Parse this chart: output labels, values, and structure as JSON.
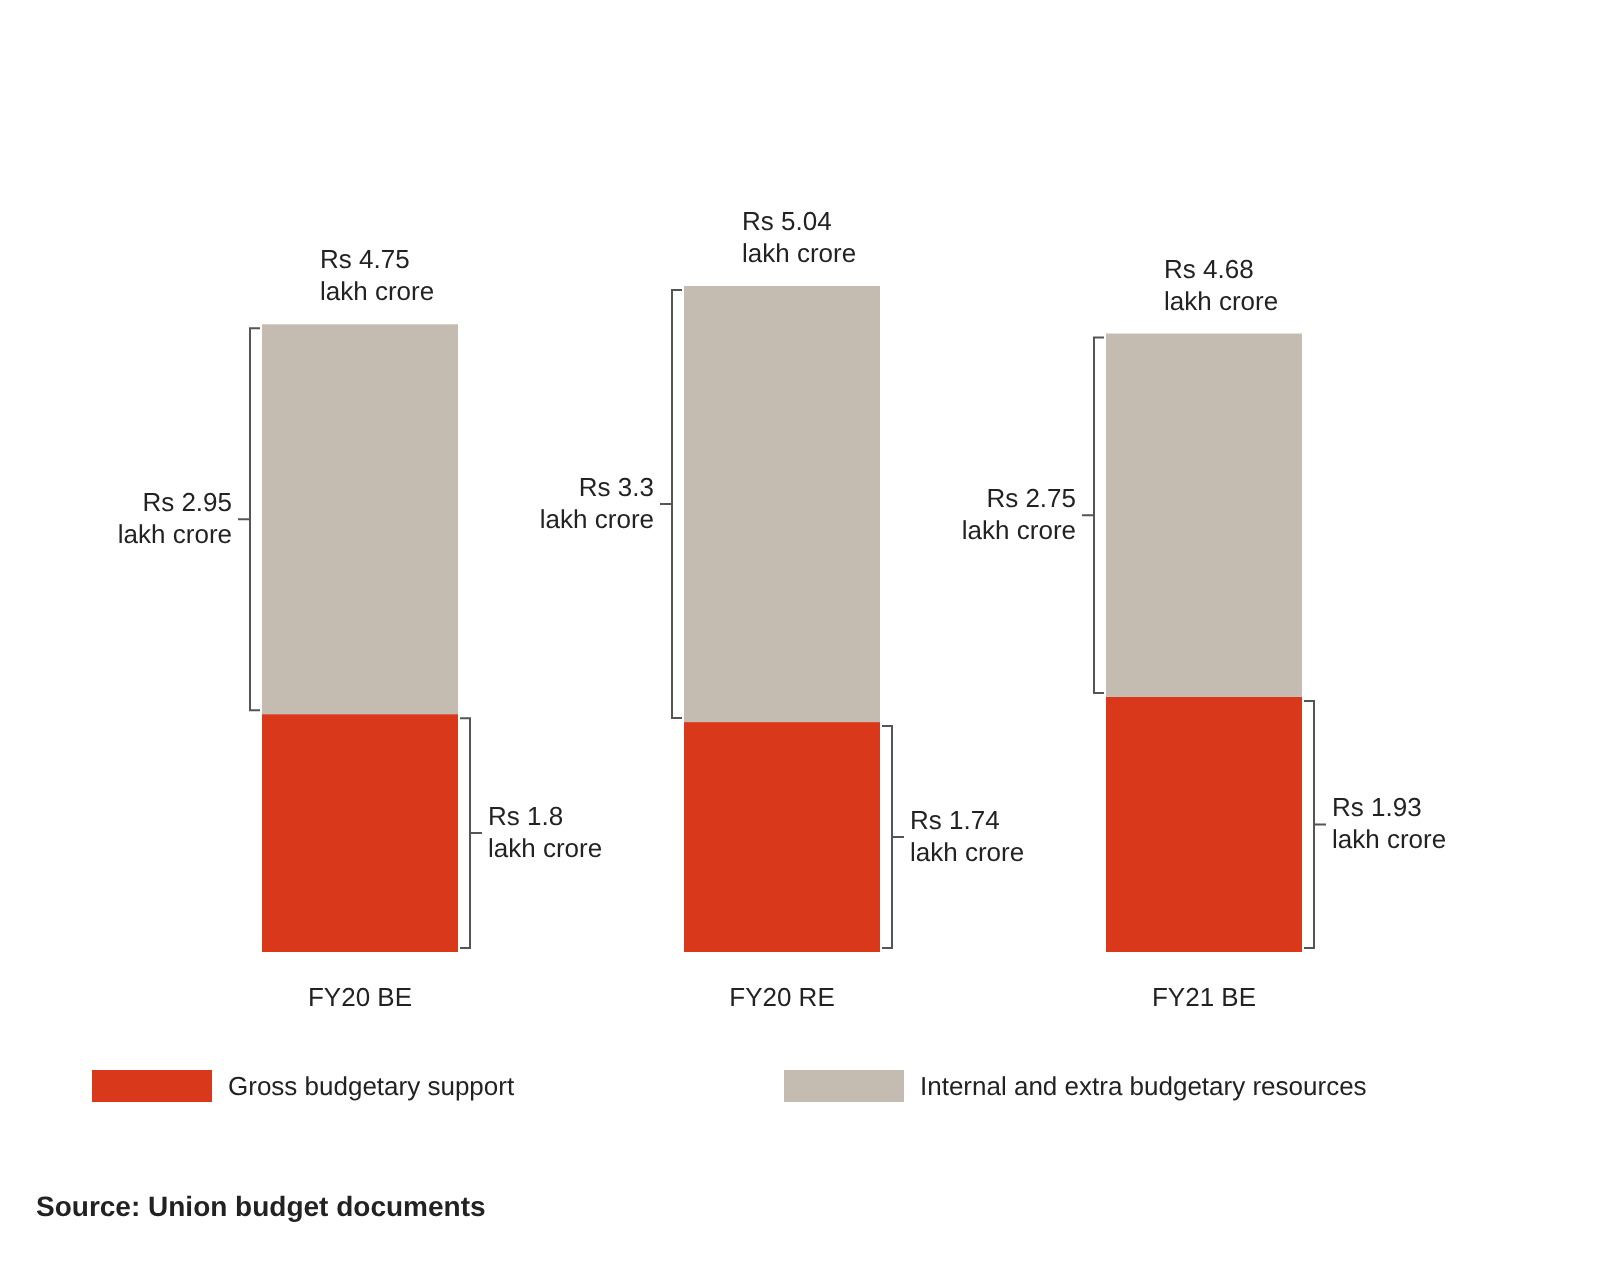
{
  "chart_data": {
    "type": "bar",
    "stacked": true,
    "tick_labels": "x",
    "legend": "bottom",
    "categories": [
      "FY20 BE",
      "FY20 RE",
      "FY21 BE"
    ],
    "series": [
      {
        "name": "Gross budgetary support",
        "color": "#d9391a",
        "values": [
          1.8,
          1.74,
          1.93
        ],
        "value_labels": [
          "Rs 1.8 lakh crore",
          "Rs 1.74 lakh crore",
          "Rs 1.93 lakh crore"
        ]
      },
      {
        "name": "Internal and extra budgetary resources",
        "color": "#c4bcb0",
        "values": [
          2.95,
          3.3,
          2.75
        ],
        "value_labels": [
          "Rs 2.95 lakh crore",
          "Rs 3.3 lakh crore",
          "Rs 2.75 lakh crore"
        ]
      }
    ],
    "totals": [
      "Rs 4.75 lakh crore",
      "Rs 5.04 lakh crore",
      "Rs 4.68 lakh crore"
    ],
    "annotations": [
      "Source: Union budget documents"
    ]
  }
}
